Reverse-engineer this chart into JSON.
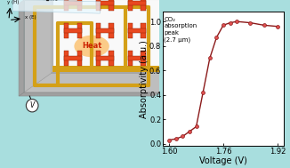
{
  "voltage": [
    1.6,
    1.62,
    1.64,
    1.66,
    1.68,
    1.7,
    1.72,
    1.74,
    1.76,
    1.78,
    1.8,
    1.84,
    1.88,
    1.92
  ],
  "absorptivity": [
    0.03,
    0.04,
    0.06,
    0.1,
    0.14,
    0.42,
    0.7,
    0.87,
    0.97,
    0.99,
    1.0,
    0.99,
    0.97,
    0.96
  ],
  "xlabel": "Voltage (V)",
  "ylabel": "Absorptivity (a.u.)",
  "annotation_line1": "CO₂",
  "annotation_line2": "absorption",
  "annotation_line3": "peak",
  "annotation_line4": "(2.7 μm)",
  "xlim": [
    1.58,
    1.94
  ],
  "ylim": [
    -0.02,
    1.08
  ],
  "xticks": [
    1.6,
    1.76,
    1.92
  ],
  "yticks": [
    0.0,
    0.2,
    0.4,
    0.6,
    0.8,
    1.0
  ],
  "line_color": "#8B1A1A",
  "marker_face": "#E05050",
  "bg_color": "#A8DEDE",
  "plot_bg": "#ffffff",
  "axis_fontsize": 7,
  "tick_fontsize": 6
}
